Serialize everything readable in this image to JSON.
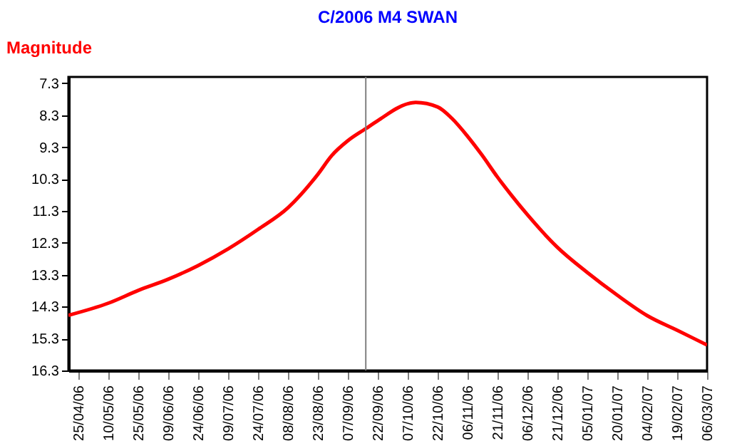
{
  "chart_data": {
    "type": "line",
    "title": "C/2006 M4 SWAN",
    "ylabel": "Magnitude",
    "x": [
      "2006-04-20",
      "2006-05-10",
      "2006-05-25",
      "2006-06-09",
      "2006-06-24",
      "2006-07-09",
      "2006-07-24",
      "2006-08-08",
      "2006-08-23",
      "2006-08-30",
      "2006-09-07",
      "2006-09-16",
      "2006-09-22",
      "2006-10-07",
      "2006-10-11",
      "2006-10-22",
      "2006-10-29",
      "2006-11-06",
      "2006-11-13",
      "2006-11-21",
      "2006-11-28",
      "2006-12-06",
      "2006-12-21",
      "2007-01-05",
      "2007-01-20",
      "2007-02-04",
      "2007-02-19",
      "2007-03-06"
    ],
    "series": [
      {
        "color": "#ff0000",
        "values": [
          14.57,
          14.19,
          13.79,
          13.44,
          13.01,
          12.49,
          11.88,
          11.2,
          10.15,
          9.56,
          9.1,
          8.72,
          8.47,
          7.94,
          7.9,
          8.04,
          8.39,
          8.96,
          9.53,
          10.24,
          10.81,
          11.42,
          12.44,
          13.23,
          13.94,
          14.58,
          15.04,
          15.5
        ]
      }
    ],
    "xlim": [
      "2006-04-20",
      "2007-03-06"
    ],
    "xticks": [
      {
        "value": "2006-04-25",
        "label": "25/04/06"
      },
      {
        "value": "2006-05-10",
        "label": "10/05/06"
      },
      {
        "value": "2006-05-25",
        "label": "25/05/06"
      },
      {
        "value": "2006-06-09",
        "label": "09/06/06"
      },
      {
        "value": "2006-06-24",
        "label": "24/06/06"
      },
      {
        "value": "2006-07-09",
        "label": "09/07/06"
      },
      {
        "value": "2006-07-24",
        "label": "24/07/06"
      },
      {
        "value": "2006-08-08",
        "label": "08/08/06"
      },
      {
        "value": "2006-08-23",
        "label": "23/08/06"
      },
      {
        "value": "2006-09-07",
        "label": "07/09/06"
      },
      {
        "value": "2006-09-22",
        "label": "22/09/06"
      },
      {
        "value": "2006-10-07",
        "label": "07/10/06"
      },
      {
        "value": "2006-10-22",
        "label": "22/10/06"
      },
      {
        "value": "2006-11-06",
        "label": "06/11/06"
      },
      {
        "value": "2006-11-21",
        "label": "21/11/06"
      },
      {
        "value": "2006-12-06",
        "label": "06/12/06"
      },
      {
        "value": "2006-12-21",
        "label": "21/12/06"
      },
      {
        "value": "2007-01-05",
        "label": "05/01/07"
      },
      {
        "value": "2007-01-20",
        "label": "20/01/07"
      },
      {
        "value": "2007-02-04",
        "label": "04/02/07"
      },
      {
        "value": "2007-02-19",
        "label": "19/02/07"
      },
      {
        "value": "2007-03-06",
        "label": "06/03/07"
      }
    ],
    "ylim": [
      16.3,
      7.1
    ],
    "yticks": [
      7.3,
      8.3,
      9.3,
      10.3,
      11.3,
      12.3,
      13.3,
      14.3,
      15.3,
      16.3
    ],
    "ref_lines": [
      {
        "axis": "x",
        "value": "2006-09-16",
        "color": "#808080"
      }
    ],
    "grid": false,
    "marker": "none",
    "line_style": "solid"
  }
}
